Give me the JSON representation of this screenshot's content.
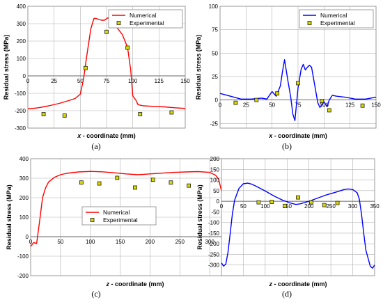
{
  "chart_data": [
    {
      "type": "line",
      "panel_label": "(a)",
      "xlabel_var": "x",
      "xlabel_rest": " - coordinate (mm)",
      "ylabel": "Residual stress (MPa)",
      "xlim": [
        0,
        150
      ],
      "ylim": [
        -300,
        400
      ],
      "xticks": [
        0,
        25,
        50,
        75,
        100,
        125,
        150
      ],
      "yticks": [
        -300,
        -200,
        -100,
        0,
        100,
        200,
        300,
        400
      ],
      "grid": true,
      "legend_position": "top-right",
      "line_color": "#ff0000",
      "series": [
        {
          "name": "Numerical",
          "kind": "line",
          "x": [
            0,
            10,
            20,
            30,
            40,
            45,
            50,
            53,
            56,
            60,
            63,
            65,
            70,
            73,
            76,
            80,
            84,
            90,
            95,
            98,
            100,
            103,
            105,
            110,
            120,
            130,
            140,
            150
          ],
          "y": [
            -190,
            -183,
            -172,
            -158,
            -140,
            -130,
            -105,
            -20,
            110,
            270,
            330,
            330,
            320,
            320,
            333,
            332,
            285,
            238,
            165,
            35,
            -115,
            -140,
            -165,
            -172,
            -175,
            -178,
            -183,
            -187
          ]
        },
        {
          "name": "Experimental",
          "kind": "scatter",
          "x": [
            15,
            35,
            55,
            75,
            95,
            107,
            137
          ],
          "y": [
            -220,
            -228,
            45,
            253,
            162,
            -220,
            -210
          ]
        }
      ]
    },
    {
      "type": "line",
      "panel_label": "(b)",
      "xlabel_var": "x",
      "xlabel_rest": " - coordinate (mm)",
      "ylabel": "Residual stress (MPa)",
      "xlim": [
        0,
        150
      ],
      "ylim": [
        -30,
        100
      ],
      "xticks": [
        0,
        25,
        50,
        75,
        100,
        125,
        150
      ],
      "yticks": [
        -25,
        0,
        25,
        50,
        75,
        100
      ],
      "grid": true,
      "legend_position": "top-right",
      "line_color": "#0000ff",
      "series": [
        {
          "name": "Numerical",
          "kind": "line",
          "x": [
            0,
            10,
            20,
            30,
            40,
            45,
            50,
            54,
            58,
            60,
            62,
            65,
            68,
            70,
            72,
            75,
            78,
            80,
            82,
            84,
            86,
            88,
            91,
            94,
            96,
            98,
            100,
            103,
            105,
            108,
            112,
            120,
            130,
            140,
            150
          ],
          "y": [
            7,
            4,
            1,
            1,
            2,
            1,
            9,
            4,
            15,
            30,
            43,
            22,
            3,
            -15,
            -22,
            13,
            33,
            38,
            32,
            35,
            37,
            35,
            16,
            -3,
            -8,
            -5,
            -2,
            -7,
            0,
            5,
            4,
            3,
            1,
            1,
            3
          ]
        },
        {
          "name": "Experimental",
          "kind": "scatter",
          "x": [
            15,
            35,
            55,
            75,
            98,
            105,
            137
          ],
          "y": [
            -3,
            0,
            7,
            18,
            -1,
            -11,
            -6
          ]
        }
      ]
    },
    {
      "type": "line",
      "panel_label": "(c)",
      "xlabel_var": "z",
      "xlabel_rest": " - coordinate (mm)",
      "ylabel": "Residual stress (MPa)",
      "xlim": [
        0,
        350
      ],
      "ylim": [
        -200,
        400
      ],
      "xticks": [
        0,
        50,
        100,
        150,
        200,
        250,
        300,
        350
      ],
      "yticks": [
        -200,
        -100,
        0,
        100,
        200,
        300,
        400
      ],
      "grid": true,
      "legend_position": "center",
      "line_color": "#ff0000",
      "series": [
        {
          "name": "Numerical",
          "kind": "line",
          "x": [
            0,
            5,
            10,
            15,
            20,
            25,
            30,
            40,
            50,
            60,
            80,
            100,
            120,
            140,
            160,
            180,
            200,
            220,
            240,
            260,
            280,
            300,
            310,
            315,
            320,
            325,
            330,
            335,
            340,
            345,
            350
          ],
          "y": [
            -50,
            -30,
            -35,
            80,
            200,
            250,
            280,
            305,
            318,
            325,
            332,
            335,
            333,
            328,
            322,
            318,
            322,
            326,
            330,
            332,
            334,
            330,
            315,
            295,
            230,
            120,
            -20,
            -60,
            -65,
            -75,
            -80
          ]
        },
        {
          "name": "Experimental",
          "kind": "scatter",
          "x": [
            85,
            115,
            145,
            175,
            205,
            235,
            265
          ],
          "y": [
            278,
            273,
            302,
            252,
            292,
            278,
            262
          ]
        }
      ]
    },
    {
      "type": "line",
      "panel_label": "(d)",
      "xlabel_var": "z",
      "xlabel_rest": " - coordinate (mm)",
      "ylabel": "Residual stress (MPa)",
      "xlim": [
        0,
        350
      ],
      "ylim": [
        -350,
        200
      ],
      "xticks": [
        0,
        50,
        100,
        150,
        200,
        250,
        300,
        350
      ],
      "yticks": [
        -300,
        -250,
        -200,
        -150,
        -100,
        -50,
        0,
        50,
        100,
        150,
        200
      ],
      "grid": true,
      "legend_position": "none",
      "line_color": "#0000ff",
      "series": [
        {
          "name": "",
          "kind": "line",
          "x": [
            0,
            5,
            10,
            15,
            20,
            25,
            30,
            40,
            50,
            60,
            70,
            80,
            100,
            120,
            140,
            160,
            170,
            180,
            200,
            220,
            240,
            260,
            280,
            290,
            300,
            310,
            315,
            320,
            325,
            330,
            340,
            345,
            350
          ],
          "y": [
            -290,
            -305,
            -295,
            -240,
            -150,
            -60,
            5,
            60,
            82,
            85,
            80,
            70,
            48,
            25,
            5,
            -10,
            -15,
            -12,
            0,
            15,
            30,
            42,
            55,
            58,
            55,
            40,
            10,
            -60,
            -150,
            -230,
            -305,
            -315,
            -300
          ]
        },
        {
          "name": "",
          "kind": "scatter",
          "x": [
            85,
            115,
            145,
            175,
            205,
            235,
            265
          ],
          "y": [
            -5,
            -3,
            -22,
            18,
            -5,
            -18,
            -8
          ]
        }
      ]
    }
  ]
}
